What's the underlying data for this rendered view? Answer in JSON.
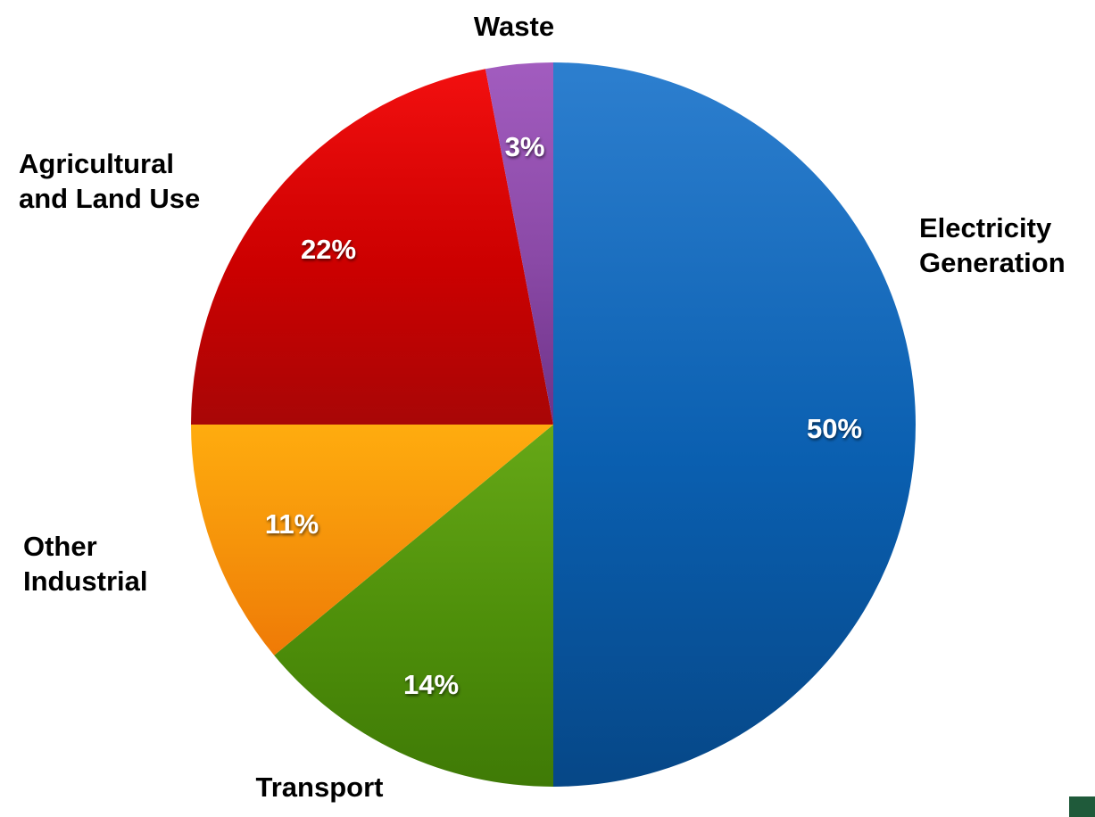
{
  "chart_data": {
    "type": "pie",
    "start": "12 o'clock",
    "direction": "clockwise",
    "slices": [
      {
        "label": [
          "Electricity",
          "Generation"
        ],
        "value": 50,
        "display": "50%",
        "color": "#0a5fb0",
        "color_light": "#2d7fcf",
        "color_dark": "#064787"
      },
      {
        "label": [
          "Transport"
        ],
        "value": 14,
        "display": "14%",
        "color": "#4e8f0a",
        "color_light": "#66a817",
        "color_dark": "#3f7a06"
      },
      {
        "label": [
          "Other",
          "Industrial"
        ],
        "value": 11,
        "display": "11%",
        "color": "#f5920a",
        "color_light": "#ffac0e",
        "color_dark": "#ef7a06"
      },
      {
        "label": [
          "Agricultural",
          "and Land Use"
        ],
        "value": 22,
        "display": "22%",
        "color": "#cc0000",
        "color_light": "#f20f0f",
        "color_dark": "#a80606"
      },
      {
        "label": [
          "Waste"
        ],
        "value": 3,
        "display": "3%",
        "color": "#8a49a6",
        "color_light": "#a25cbf",
        "color_dark": "#6e3288"
      }
    ]
  },
  "corner_mark": {
    "color": "#1f5a3a"
  }
}
